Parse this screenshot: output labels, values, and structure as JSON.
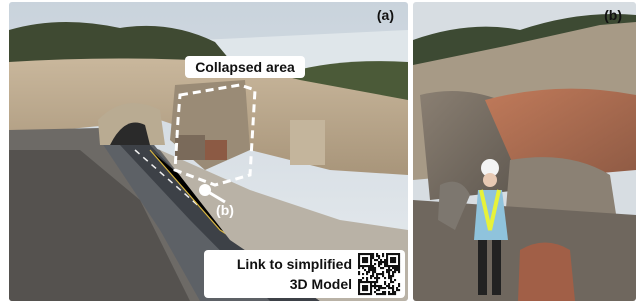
{
  "panels": [
    {
      "label": "(a)",
      "annotations": {
        "collapsed_area": "Collapsed area",
        "view_marker": "(b)",
        "link_text": [
          "Link to simplified",
          "3D Model"
        ]
      }
    },
    {
      "label": "(b)"
    }
  ]
}
